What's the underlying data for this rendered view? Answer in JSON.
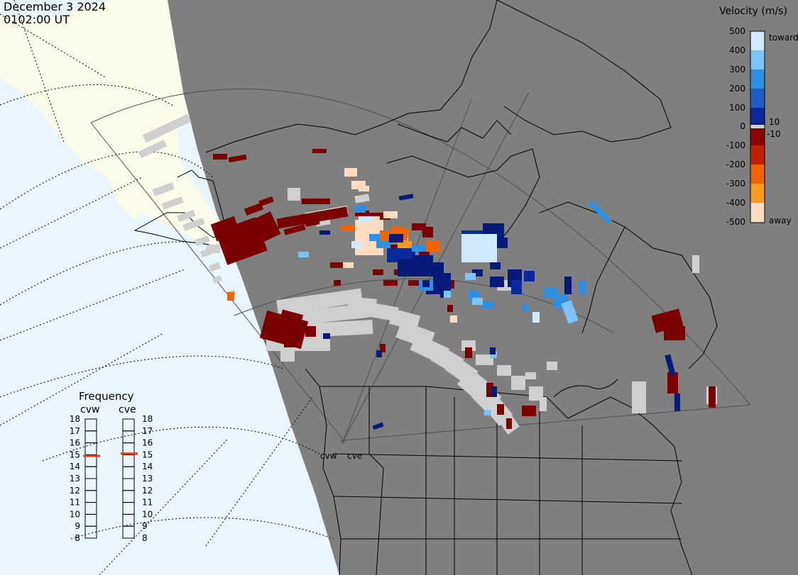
{
  "header": {
    "date": "December 3 2024",
    "time": "0102:00 UT"
  },
  "colorbar": {
    "title": "Velocity (m/s)",
    "ticks": [
      "500",
      "400",
      "300",
      "200",
      "100",
      "0",
      "-100",
      "-200",
      "-300",
      "-400",
      "-500"
    ],
    "label_10": "10",
    "label_neg10": "-10",
    "label_toward": "toward",
    "label_away": "away",
    "colors": {
      "toward_500": "#cfeaff",
      "toward_400": "#7cc4f7",
      "toward_300": "#2f8fe0",
      "toward_200": "#1f5cc4",
      "toward_100": "#0a2a9c",
      "toward_10": "#061a7a",
      "zero_band": "#d0d0d0",
      "away_10": "#7a0000",
      "away_100": "#8c0000",
      "away_200": "#c02000",
      "away_300": "#f06400",
      "away_400": "#ff9a20",
      "away_500": "#ffdcc0",
      "ground_scatter": "#cfcfcf"
    }
  },
  "frequency": {
    "title": "Frequency",
    "radars": [
      {
        "label": "cvw",
        "freq_mhz": 14.9
      },
      {
        "label": "cve",
        "freq_mhz": 15.1
      }
    ],
    "scale": [
      "18",
      "17",
      "16",
      "15",
      "14",
      "13",
      "12",
      "11",
      "10",
      "9",
      "8"
    ],
    "marker_color": "#e04010"
  },
  "map": {
    "radar_labels": [
      "cvw",
      "cve"
    ],
    "colors": {
      "night": "#7f7f7f",
      "ocean_day": "#eaf6ff",
      "land_day": "#fbfbea",
      "fov": "#505050",
      "coast": "#000000",
      "grid": "#000000"
    }
  }
}
